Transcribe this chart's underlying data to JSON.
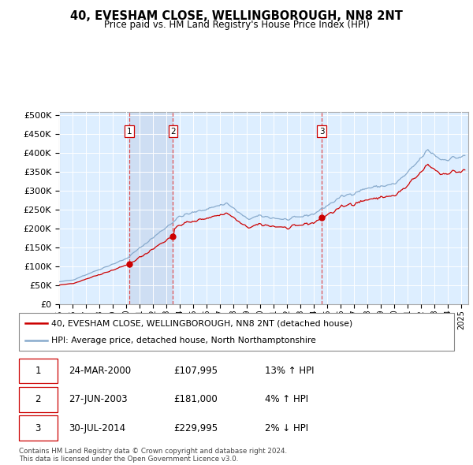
{
  "title": "40, EVESHAM CLOSE, WELLINGBOROUGH, NN8 2NT",
  "subtitle": "Price paid vs. HM Land Registry's House Price Index (HPI)",
  "ylabel_ticks": [
    "£0",
    "£50K",
    "£100K",
    "£150K",
    "£200K",
    "£250K",
    "£300K",
    "£350K",
    "£400K",
    "£450K",
    "£500K"
  ],
  "ytick_values": [
    0,
    50000,
    100000,
    150000,
    200000,
    250000,
    300000,
    350000,
    400000,
    450000,
    500000
  ],
  "ylim": [
    0,
    510000
  ],
  "xlim_start": 1995.0,
  "xlim_end": 2025.5,
  "x_tick_years": [
    1995,
    1996,
    1997,
    1998,
    1999,
    2000,
    2001,
    2002,
    2003,
    2004,
    2005,
    2006,
    2007,
    2008,
    2009,
    2010,
    2011,
    2012,
    2013,
    2014,
    2015,
    2016,
    2017,
    2018,
    2019,
    2020,
    2021,
    2022,
    2023,
    2024,
    2025
  ],
  "sale_dates": [
    2000.23,
    2003.49,
    2014.58
  ],
  "sale_prices": [
    107995,
    181000,
    229995
  ],
  "sale_labels": [
    "1",
    "2",
    "3"
  ],
  "legend_line1": "40, EVESHAM CLOSE, WELLINGBOROUGH, NN8 2NT (detached house)",
  "legend_line2": "HPI: Average price, detached house, North Northamptonshire",
  "table_data": [
    [
      "1",
      "24-MAR-2000",
      "£107,995",
      "13% ↑ HPI"
    ],
    [
      "2",
      "27-JUN-2003",
      "£181,000",
      "4% ↑ HPI"
    ],
    [
      "3",
      "30-JUL-2014",
      "£229,995",
      "2% ↓ HPI"
    ]
  ],
  "footer": "Contains HM Land Registry data © Crown copyright and database right 2024.\nThis data is licensed under the Open Government Licence v3.0.",
  "red_color": "#cc0000",
  "blue_color": "#88aacc",
  "bg_chart": "#ddeeff",
  "grid_color": "#ffffff",
  "vline_color": "#dd3333",
  "shade_color": "#c8d8ee"
}
